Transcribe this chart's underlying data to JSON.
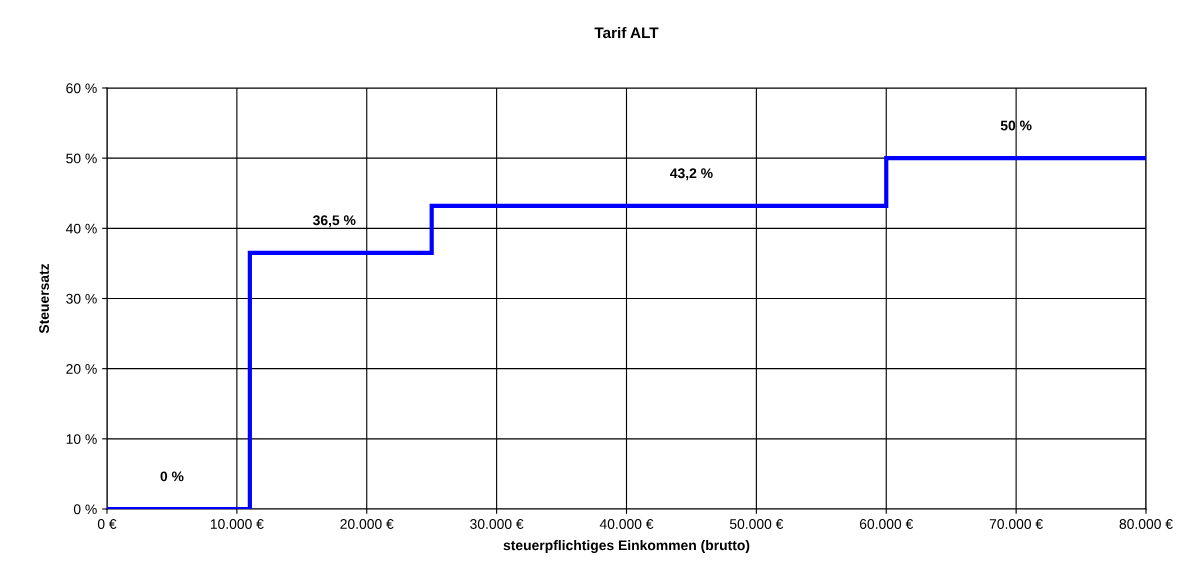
{
  "chart_data": {
    "type": "step",
    "title": "Tarif ALT",
    "xlabel": "steuerpflichtiges Einkommen (brutto)",
    "ylabel": "Steuersatz",
    "x": [
      0,
      11000,
      25000,
      60000,
      80000
    ],
    "series": [
      {
        "color": "#0000ff",
        "values": [
          0,
          36.5,
          43.2,
          50,
          50
        ]
      }
    ],
    "xlim": [
      0,
      80000
    ],
    "ylim": [
      0,
      60
    ],
    "xticks": [
      {
        "value": 0,
        "label": "0 €"
      },
      {
        "value": 10000,
        "label": "10.000 €"
      },
      {
        "value": 20000,
        "label": "20.000 €"
      },
      {
        "value": 30000,
        "label": "30.000 €"
      },
      {
        "value": 40000,
        "label": "40.000 €"
      },
      {
        "value": 50000,
        "label": "50.000 €"
      },
      {
        "value": 60000,
        "label": "60.000 €"
      },
      {
        "value": 70000,
        "label": "70.000 €"
      },
      {
        "value": 80000,
        "label": "80.000 €"
      }
    ],
    "yticks": [
      {
        "value": 0,
        "label": "0 %"
      },
      {
        "value": 10,
        "label": "10 %"
      },
      {
        "value": 20,
        "label": "20 %"
      },
      {
        "value": 30,
        "label": "30 %"
      },
      {
        "value": 40,
        "label": "40 %"
      },
      {
        "value": 50,
        "label": "50 %"
      },
      {
        "value": 60,
        "label": "60 %"
      }
    ],
    "annotations": [
      {
        "text": "0 %",
        "x": 5000,
        "y": 0
      },
      {
        "text": "36,5 %",
        "x": 17500,
        "y": 36.5
      },
      {
        "text": "43,2 %",
        "x": 45000,
        "y": 43.2
      },
      {
        "text": "50 %",
        "x": 70000,
        "y": 50
      }
    ],
    "grid": true,
    "legend": false,
    "marker": "none",
    "line_style": "solid"
  }
}
